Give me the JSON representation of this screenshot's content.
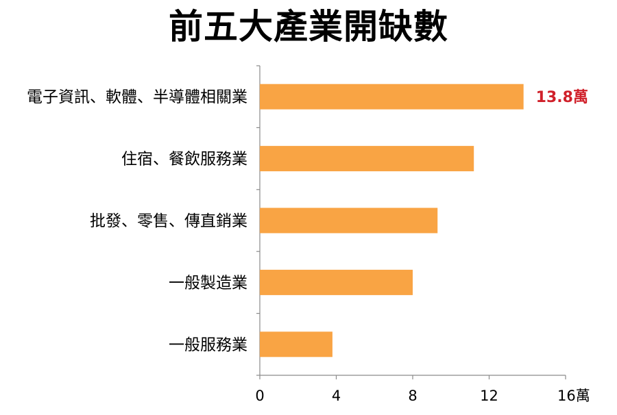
{
  "chart_data": {
    "type": "bar",
    "orientation": "horizontal",
    "title": "前五大產業開缺數",
    "categories": [
      "電子資訊、軟體、半導體相關業",
      "住宿、餐飲服務業",
      "批發、零售、傳直銷業",
      "一般製造業",
      "一般服務業"
    ],
    "values": [
      13.8,
      11.2,
      9.3,
      8.0,
      3.8
    ],
    "xlim": [
      0,
      16
    ],
    "xticks": [
      "0",
      "4",
      "8",
      "12",
      "16萬"
    ],
    "xtick_values": [
      0,
      4,
      8,
      12,
      16
    ],
    "data_labels": [
      "13.8萬",
      "",
      "",
      "",
      ""
    ],
    "grid": false,
    "legend": "none",
    "bar_color": "#F9A444",
    "label_color": "#D0202A"
  }
}
